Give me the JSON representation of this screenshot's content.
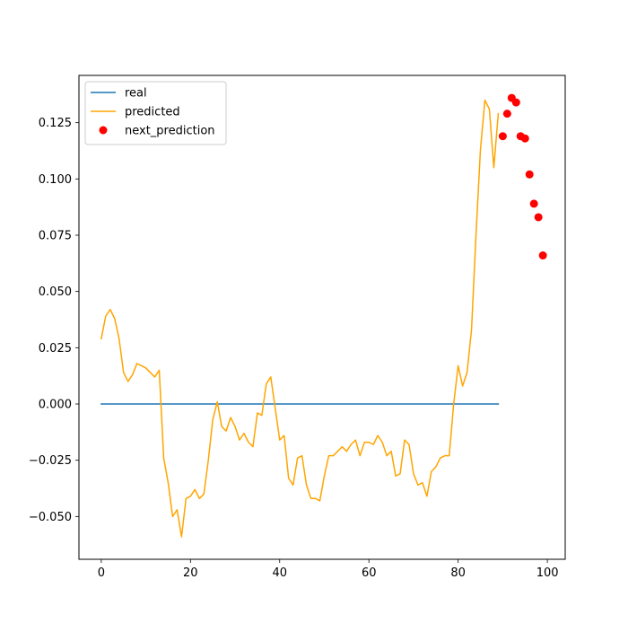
{
  "chart_data": {
    "type": "line",
    "title": "",
    "xlabel": "",
    "ylabel": "",
    "xlim": [
      -5,
      104
    ],
    "ylim": [
      -0.069,
      0.146
    ],
    "x_ticks": [
      0,
      20,
      40,
      60,
      80,
      100
    ],
    "x_tick_labels": [
      "0",
      "20",
      "40",
      "60",
      "80",
      "100"
    ],
    "y_ticks": [
      -0.05,
      -0.025,
      0.0,
      0.025,
      0.05,
      0.075,
      0.1,
      0.125
    ],
    "y_tick_labels": [
      "−0.050",
      "−0.025",
      "0.000",
      "0.025",
      "0.050",
      "0.075",
      "0.100",
      "0.125"
    ],
    "grid": false,
    "legend": {
      "location": "upper left",
      "entries": [
        "real",
        "predicted",
        "next_prediction"
      ]
    },
    "series": [
      {
        "name": "real",
        "kind": "line",
        "color": "#1f77b4",
        "x": [
          0,
          89
        ],
        "y": [
          0.0,
          0.0
        ]
      },
      {
        "name": "predicted",
        "kind": "line",
        "color": "#ffa500",
        "x": [
          0,
          1,
          2,
          3,
          4,
          5,
          6,
          7,
          8,
          9,
          10,
          11,
          12,
          13,
          14,
          15,
          16,
          17,
          18,
          19,
          20,
          21,
          22,
          23,
          24,
          25,
          26,
          27,
          28,
          29,
          30,
          31,
          32,
          33,
          34,
          35,
          36,
          37,
          38,
          39,
          40,
          41,
          42,
          43,
          44,
          45,
          46,
          47,
          48,
          49,
          50,
          51,
          52,
          53,
          54,
          55,
          56,
          57,
          58,
          59,
          60,
          61,
          62,
          63,
          64,
          65,
          66,
          67,
          68,
          69,
          70,
          71,
          72,
          73,
          74,
          75,
          76,
          77,
          78,
          79,
          80,
          81,
          82,
          83,
          84,
          85,
          86,
          87,
          88,
          89
        ],
        "y": [
          0.029,
          0.039,
          0.042,
          0.038,
          0.029,
          0.014,
          0.01,
          0.013,
          0.018,
          0.017,
          0.016,
          0.014,
          0.012,
          0.015,
          -0.024,
          -0.035,
          -0.05,
          -0.047,
          -0.059,
          -0.042,
          -0.041,
          -0.038,
          -0.042,
          -0.04,
          -0.025,
          -0.007,
          0.001,
          -0.01,
          -0.012,
          -0.006,
          -0.01,
          -0.016,
          -0.013,
          -0.017,
          -0.019,
          -0.004,
          -0.005,
          0.009,
          0.012,
          -0.002,
          -0.016,
          -0.014,
          -0.033,
          -0.036,
          -0.024,
          -0.023,
          -0.036,
          -0.042,
          -0.042,
          -0.043,
          -0.032,
          -0.023,
          -0.023,
          -0.021,
          -0.019,
          -0.021,
          -0.018,
          -0.016,
          -0.023,
          -0.017,
          -0.017,
          -0.018,
          -0.014,
          -0.017,
          -0.023,
          -0.021,
          -0.032,
          -0.031,
          -0.016,
          -0.018,
          -0.031,
          -0.036,
          -0.035,
          -0.041,
          -0.03,
          -0.028,
          -0.024,
          -0.023,
          -0.023,
          0.0,
          0.017,
          0.008,
          0.014,
          0.033,
          0.075,
          0.113,
          0.135,
          0.131,
          0.105,
          0.129
        ]
      },
      {
        "name": "next_prediction",
        "kind": "scatter",
        "color": "#ff0000",
        "x": [
          90,
          91,
          92,
          93,
          94,
          95,
          96,
          97,
          98,
          99
        ],
        "y": [
          0.119,
          0.129,
          0.136,
          0.134,
          0.119,
          0.118,
          0.102,
          0.089,
          0.083,
          0.066
        ]
      }
    ]
  }
}
